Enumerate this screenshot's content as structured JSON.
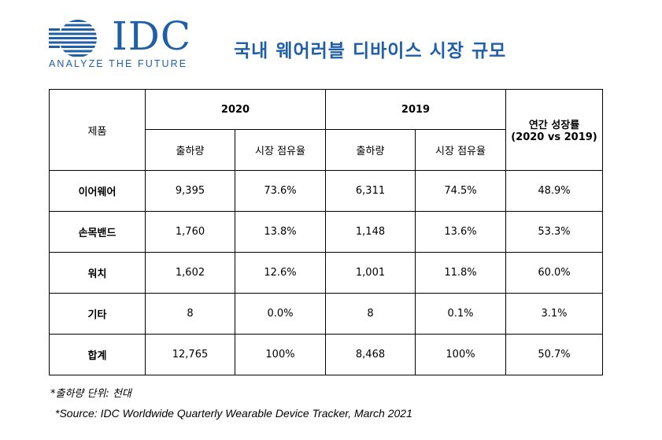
{
  "logo": {
    "wordmark": "IDC",
    "tagline": "ANALYZE THE FUTURE",
    "color": "#1f5ea8"
  },
  "title": "국내 웨어러블 디바이스 시장 규모",
  "table": {
    "product_header": "제품",
    "year_2020": "2020",
    "year_2019": "2019",
    "growth_header_line1": "연간 성장률",
    "growth_header_line2": "(2020 vs 2019)",
    "shipments_label": "출하량",
    "share_label": "시장 점유율",
    "rows": [
      {
        "product": "이어웨어",
        "ship_2020": "9,395",
        "share_2020": "73.6%",
        "ship_2019": "6,311",
        "share_2019": "74.5%",
        "growth": "48.9%"
      },
      {
        "product": "손목밴드",
        "ship_2020": "1,760",
        "share_2020": "13.8%",
        "ship_2019": "1,148",
        "share_2019": "13.6%",
        "growth": "53.3%"
      },
      {
        "product": "워치",
        "ship_2020": "1,602",
        "share_2020": "12.6%",
        "ship_2019": "1,001",
        "share_2019": "11.8%",
        "growth": "60.0%"
      },
      {
        "product": "기타",
        "ship_2020": "8",
        "share_2020": "0.0%",
        "ship_2019": "8",
        "share_2019": "0.1%",
        "growth": "3.1%"
      },
      {
        "product": "합계",
        "ship_2020": "12,765",
        "share_2020": "100%",
        "ship_2019": "8,468",
        "share_2019": "100%",
        "growth": "50.7%"
      }
    ]
  },
  "notes": {
    "unit": "*출하량 단위: 천대",
    "source": "*Source: IDC Worldwide Quarterly Wearable Device Tracker, March 2021"
  }
}
